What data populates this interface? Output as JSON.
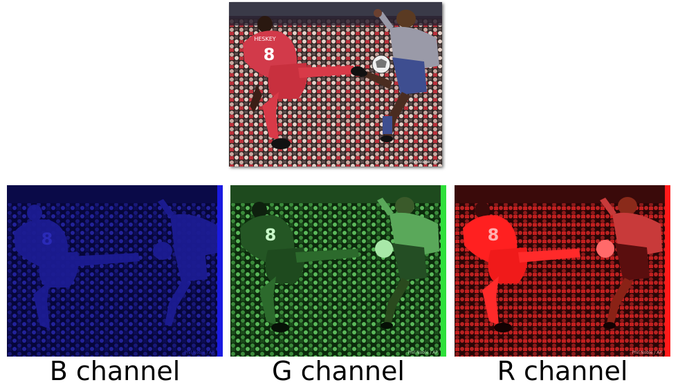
{
  "original_image": {
    "credit": "Phil Noble / AP",
    "jersey_name": "HESKEY",
    "jersey_number": "8",
    "colors": {
      "crowd": "#3a2a28",
      "red_shirt": "#d23a4a",
      "blue_kit": "#3e4e90",
      "grey_shirt": "#9a9aa8",
      "skin": "#4a2c20"
    }
  },
  "channels": [
    {
      "caption": "B channel",
      "tint": "#1a1ae0",
      "credit": "Phil Noble / AP",
      "jersey_number": "8"
    },
    {
      "caption": "G channel",
      "tint": "#2ee03a",
      "credit": "Phil Noble / AP",
      "jersey_number": "8"
    },
    {
      "caption": "R channel",
      "tint": "#ff1a1a",
      "credit": "Phil Noble / AP",
      "jersey_number": "8"
    }
  ]
}
